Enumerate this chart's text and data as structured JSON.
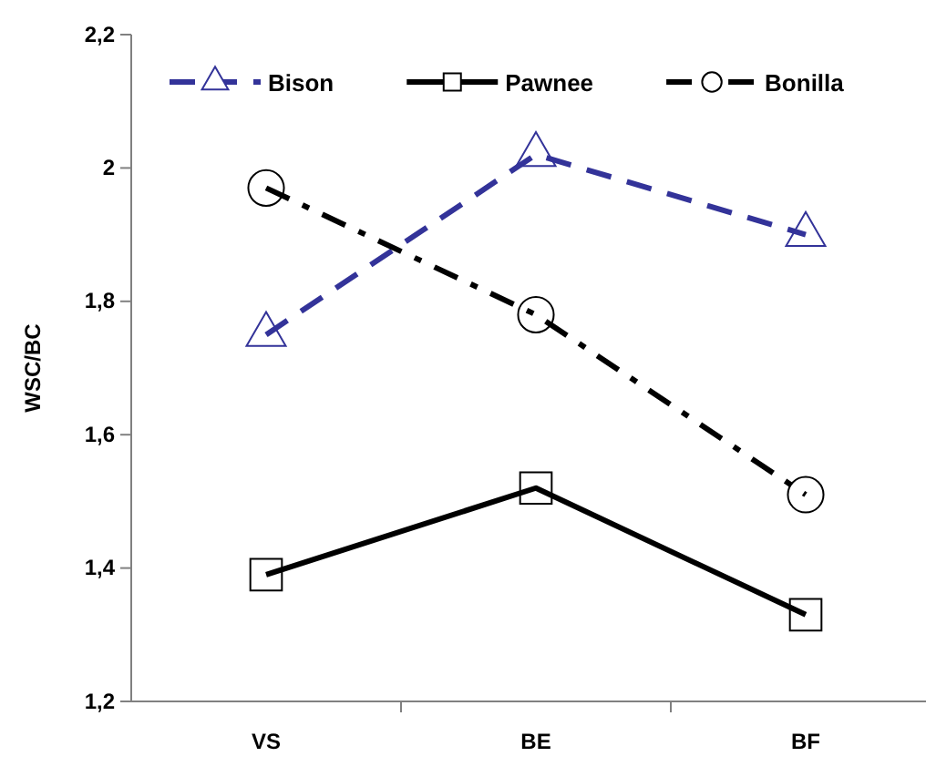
{
  "chart_data": {
    "type": "line",
    "ylabel": "WSC/BC",
    "categories": [
      "VS",
      "BE",
      "BF"
    ],
    "series": [
      {
        "name": "Bison",
        "color": "#333399",
        "values": [
          1.75,
          2.02,
          1.9
        ],
        "marker": "triangle",
        "line_style": "dashed"
      },
      {
        "name": "Pawnee",
        "color": "#000000",
        "values": [
          1.39,
          1.52,
          1.33
        ],
        "marker": "square",
        "line_style": "solid"
      },
      {
        "name": "Bonilla",
        "color": "#000000",
        "values": [
          1.97,
          1.78,
          1.51
        ],
        "marker": "circle",
        "line_style": "dashdot"
      }
    ],
    "ylim": [
      1.2,
      2.2
    ],
    "yticks": [
      {
        "value": 1.2,
        "label": "1,2"
      },
      {
        "value": 1.4,
        "label": "1,4"
      },
      {
        "value": 1.6,
        "label": "1,6"
      },
      {
        "value": 1.8,
        "label": "1,8"
      },
      {
        "value": 2,
        "label": "2"
      },
      {
        "value": 2.2,
        "label": "2,2"
      }
    ],
    "grid": false,
    "legend": "top"
  }
}
